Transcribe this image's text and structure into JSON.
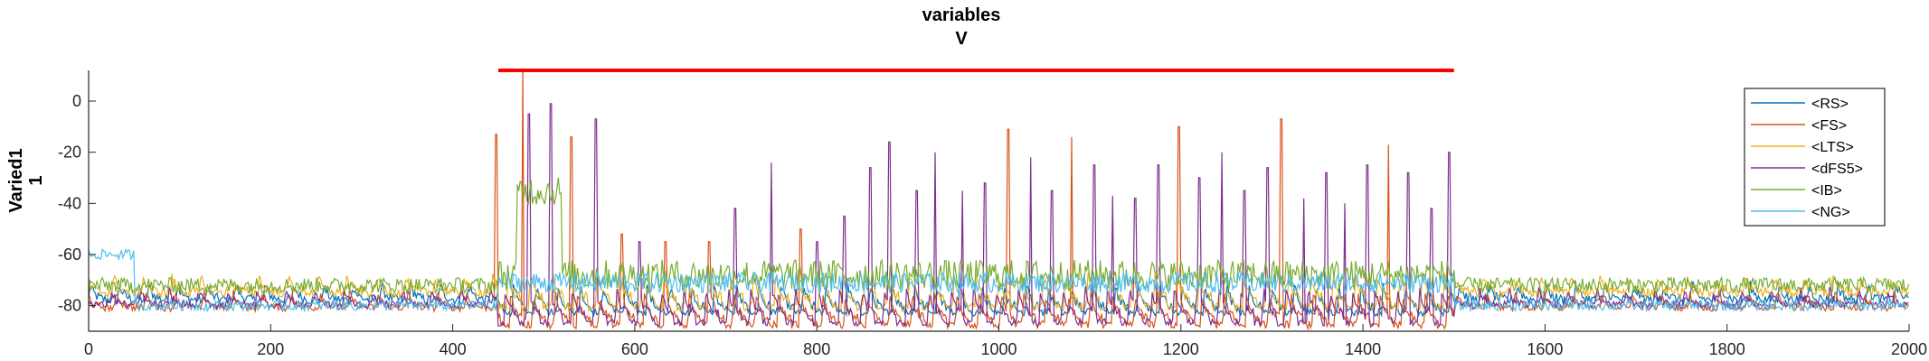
{
  "chart_data": {
    "type": "line",
    "title_lines": [
      "variables",
      "V"
    ],
    "ylabel_lines": [
      "Varied1",
      "1"
    ],
    "xlabel": "",
    "xlim": [
      0,
      2000
    ],
    "ylim": [
      -90,
      12
    ],
    "xticks": [
      0,
      200,
      400,
      600,
      800,
      1000,
      1200,
      1400,
      1600,
      1800,
      2000
    ],
    "yticks": [
      -80,
      -60,
      -40,
      -20,
      0
    ],
    "grid": false,
    "legend_position": "top-right",
    "stimulus_bar": {
      "x": [
        450,
        1500
      ],
      "y": 12,
      "color": "#ff0000"
    },
    "series": [
      {
        "name": "<RS>",
        "color": "#0072bd"
      },
      {
        "name": "<FS>",
        "color": "#d95319"
      },
      {
        "name": "<LTS>",
        "color": "#edb120"
      },
      {
        "name": "<dFS5>",
        "color": "#7e2f8e"
      },
      {
        "name": "<IB>",
        "color": "#77ac30"
      },
      {
        "name": "<NG>",
        "color": "#4dbeee"
      }
    ],
    "spike_peaks": [
      {
        "x": 448,
        "y": -13,
        "series": "<FS>"
      },
      {
        "x": 477,
        "y": 12,
        "series": "<FS>"
      },
      {
        "x": 484,
        "y": -5,
        "series": "<dFS5>"
      },
      {
        "x": 508,
        "y": -1,
        "series": "<dFS5>"
      },
      {
        "x": 530,
        "y": -14,
        "series": "<FS>"
      },
      {
        "x": 557,
        "y": -7,
        "series": "<dFS5>"
      },
      {
        "x": 586,
        "y": -52,
        "series": "<FS>"
      },
      {
        "x": 605,
        "y": -55,
        "series": "<dFS5>"
      },
      {
        "x": 634,
        "y": -55,
        "series": "<FS>"
      },
      {
        "x": 682,
        "y": -55,
        "series": "<FS>"
      },
      {
        "x": 710,
        "y": -42,
        "series": "<dFS5>"
      },
      {
        "x": 750,
        "y": -24,
        "series": "<dFS5>"
      },
      {
        "x": 782,
        "y": -50,
        "series": "<FS>"
      },
      {
        "x": 800,
        "y": -55,
        "series": "<dFS5>"
      },
      {
        "x": 830,
        "y": -45,
        "series": "<dFS5>"
      },
      {
        "x": 859,
        "y": -26,
        "series": "<dFS5>"
      },
      {
        "x": 880,
        "y": -16,
        "series": "<dFS5>"
      },
      {
        "x": 910,
        "y": -35,
        "series": "<dFS5>"
      },
      {
        "x": 930,
        "y": -20,
        "series": "<dFS5>"
      },
      {
        "x": 960,
        "y": -35,
        "series": "<dFS5>"
      },
      {
        "x": 985,
        "y": -32,
        "series": "<dFS5>"
      },
      {
        "x": 1010,
        "y": -11,
        "series": "<FS>"
      },
      {
        "x": 1035,
        "y": -22,
        "series": "<dFS5>"
      },
      {
        "x": 1058,
        "y": -35,
        "series": "<dFS5>"
      },
      {
        "x": 1080,
        "y": -14,
        "series": "<FS>"
      },
      {
        "x": 1105,
        "y": -25,
        "series": "<dFS5>"
      },
      {
        "x": 1125,
        "y": -37,
        "series": "<dFS5>"
      },
      {
        "x": 1150,
        "y": -38,
        "series": "<dFS5>"
      },
      {
        "x": 1175,
        "y": -25,
        "series": "<dFS5>"
      },
      {
        "x": 1198,
        "y": -10,
        "series": "<FS>"
      },
      {
        "x": 1220,
        "y": -30,
        "series": "<dFS5>"
      },
      {
        "x": 1245,
        "y": -20,
        "series": "<dFS5>"
      },
      {
        "x": 1270,
        "y": -35,
        "series": "<dFS5>"
      },
      {
        "x": 1295,
        "y": -26,
        "series": "<dFS5>"
      },
      {
        "x": 1310,
        "y": -7,
        "series": "<FS>"
      },
      {
        "x": 1335,
        "y": -38,
        "series": "<dFS5>"
      },
      {
        "x": 1360,
        "y": -28,
        "series": "<dFS5>"
      },
      {
        "x": 1380,
        "y": -40,
        "series": "<dFS5>"
      },
      {
        "x": 1405,
        "y": -25,
        "series": "<dFS5>"
      },
      {
        "x": 1428,
        "y": -17,
        "series": "<FS>"
      },
      {
        "x": 1450,
        "y": -28,
        "series": "<dFS5>"
      },
      {
        "x": 1475,
        "y": -42,
        "series": "<dFS5>"
      },
      {
        "x": 1495,
        "y": -20,
        "series": "<dFS5>"
      }
    ]
  }
}
